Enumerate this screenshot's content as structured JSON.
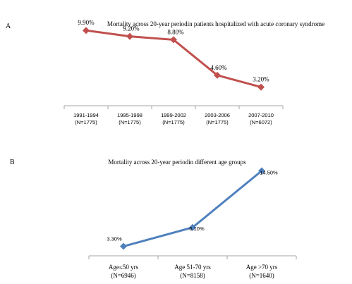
{
  "colors": {
    "panel_a_series": "#c0504d",
    "panel_b_series": "#4f81bd",
    "axis": "#a6a6a6"
  },
  "chart_data": [
    {
      "panel_label": "A",
      "type": "line",
      "title": "Mortality across 20-year periodin patients hospitalized with acute coronary syndrome",
      "categories": [
        [
          "1991-1994",
          "(N=1775)"
        ],
        [
          "1995-1998",
          "(N=1775)"
        ],
        [
          "1999-2002",
          "(N=1775)"
        ],
        [
          "2003-2006",
          "(N=1775)"
        ],
        [
          "2007-2010",
          "(N=6072)"
        ]
      ],
      "values": [
        9.9,
        9.2,
        8.8,
        4.6,
        3.2
      ],
      "data_labels": [
        "9.90%",
        "9.20%",
        "8.80%",
        "4.60%",
        "3.20%"
      ],
      "marker": "diamond",
      "ylim": [
        2,
        11
      ]
    },
    {
      "panel_label": "B",
      "type": "line",
      "title": "Mortality across 20-year periodin different age groups",
      "categories": [
        [
          "Age≤50 yrs",
          "(N=6946)"
        ],
        [
          "Age 51-70 yrs",
          "(N=8158)"
        ],
        [
          "Age >70 yrs",
          "(N=1640)"
        ]
      ],
      "values": [
        3.3,
        6.1,
        14.5
      ],
      "data_labels": [
        "3.30%",
        "6.10%",
        "14.50%"
      ],
      "marker": "diamond",
      "ylim": [
        2,
        16
      ]
    }
  ]
}
